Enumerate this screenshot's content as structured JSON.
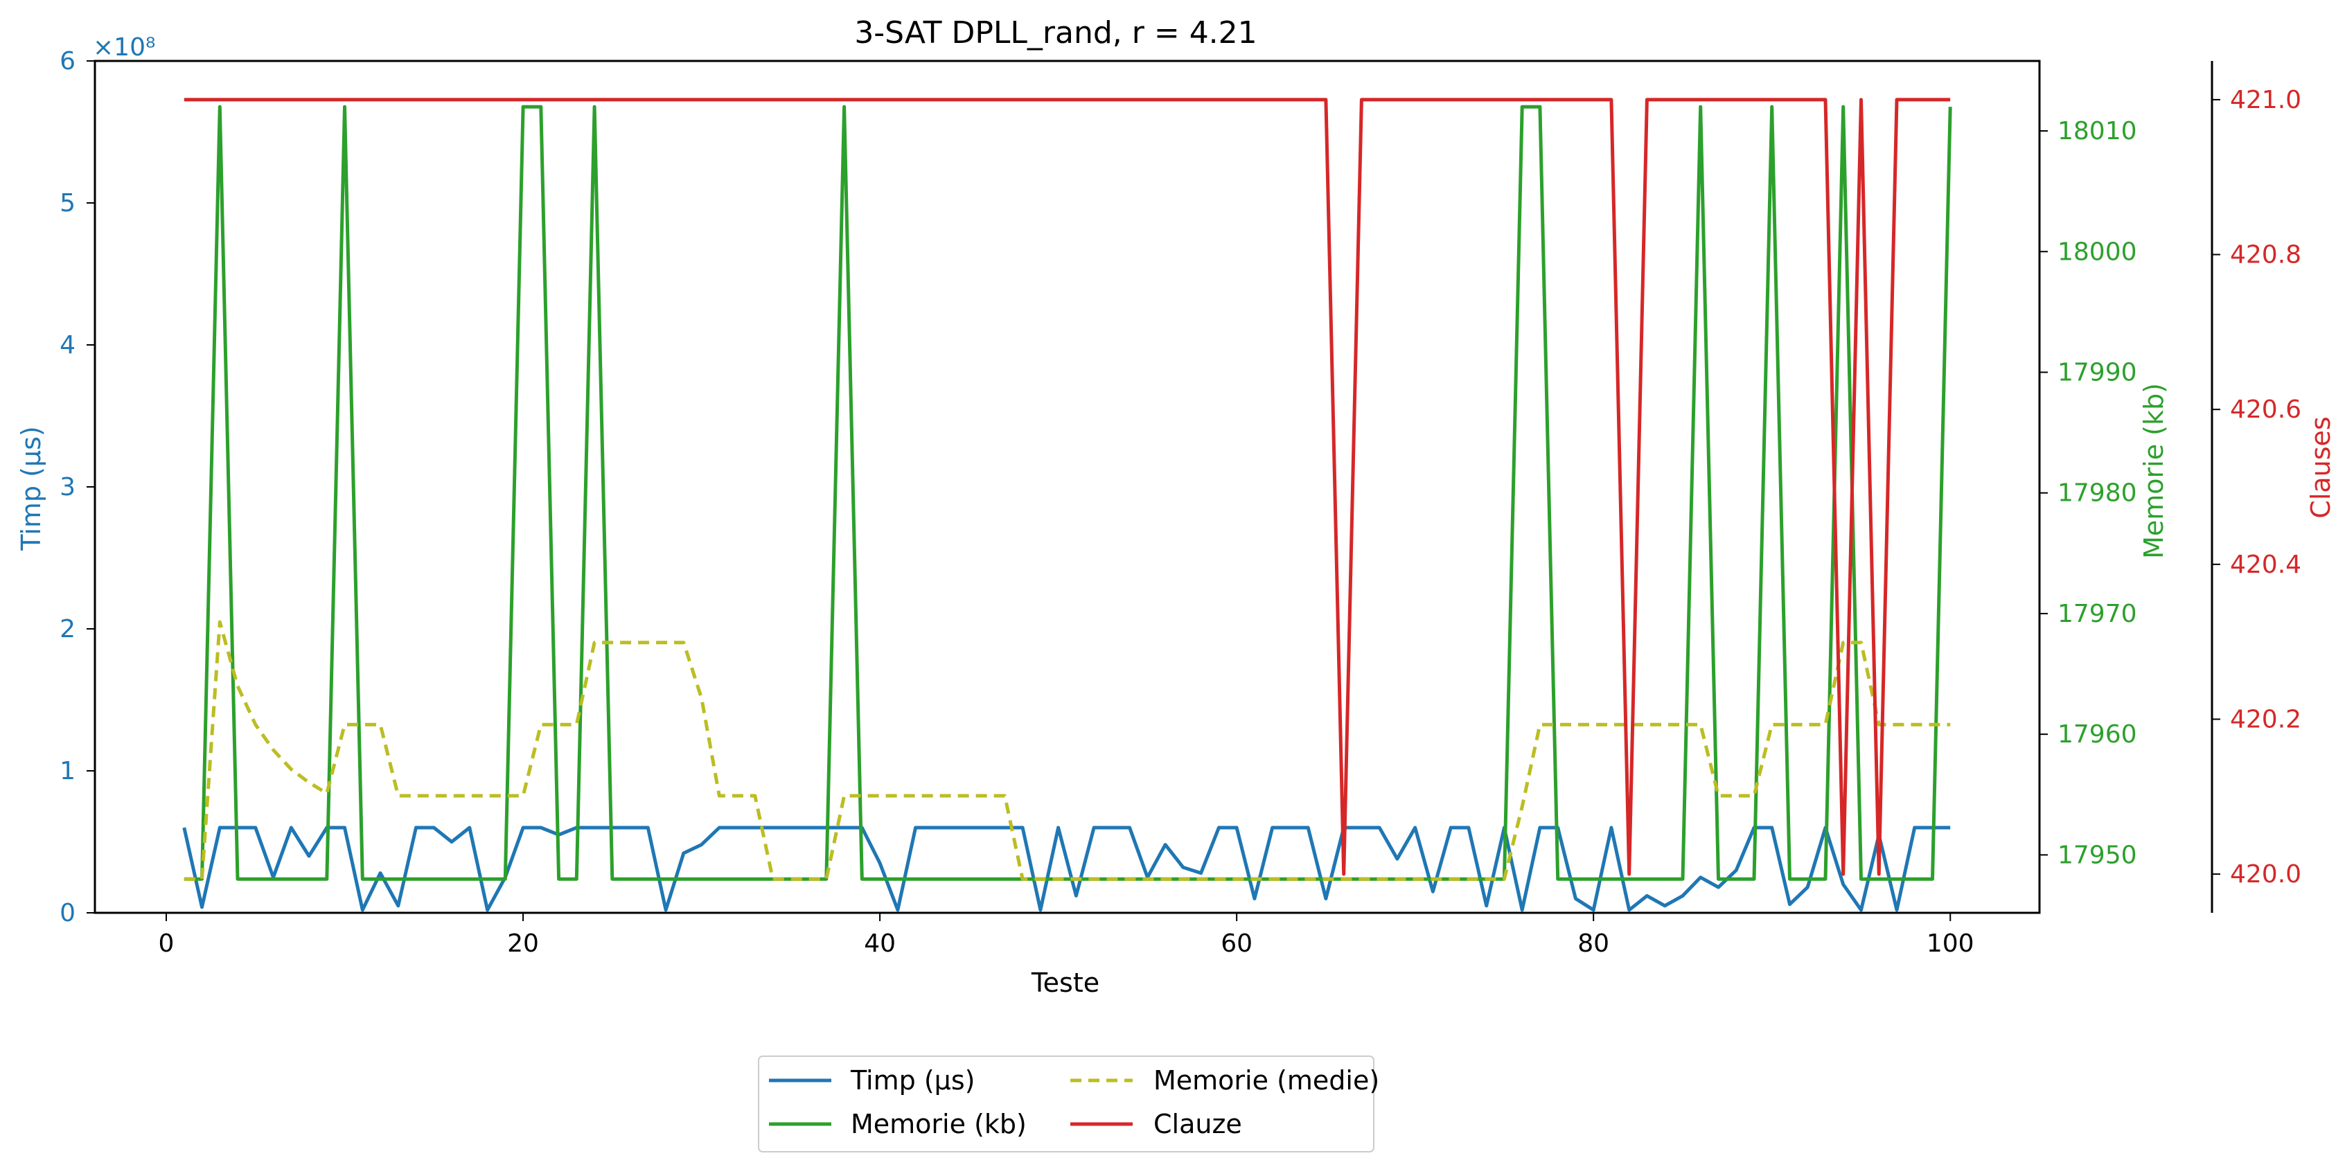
{
  "chart_data": {
    "type": "line",
    "title": "3-SAT DPLL_rand, r = 4.21",
    "xlabel": "Teste",
    "xlim": [
      -4,
      105
    ],
    "x_ticks": [
      0,
      20,
      40,
      60,
      80,
      100
    ],
    "y_left": {
      "label": "Timp (μs)",
      "range": [
        0,
        6
      ],
      "ticks": [
        0,
        1,
        2,
        3,
        4,
        5,
        6
      ],
      "multiplier_label": "×10⁸",
      "color": "#1f77b4"
    },
    "y_right_mem": {
      "label": "Memorie (kb)",
      "range": [
        17945.2,
        18015.8
      ],
      "ticks": [
        17950,
        17960,
        17970,
        17980,
        17990,
        18000,
        18010
      ],
      "color": "#2ca02c"
    },
    "y_right_clauses": {
      "label": "Clauses",
      "range": [
        419.95,
        421.05
      ],
      "ticks": [
        "420.0",
        "420.2",
        "420.4",
        "420.6",
        "420.8",
        "421.0"
      ],
      "color": "#d62728"
    },
    "grid": false,
    "legend": {
      "placement": "bottom-center",
      "entries": [
        {
          "label": "Timp (μs)",
          "color": "#1f77b4",
          "style": "solid"
        },
        {
          "label": "Memorie (medie)",
          "color": "#bcbd22",
          "style": "dashed"
        },
        {
          "label": "Memorie (kb)",
          "color": "#2ca02c",
          "style": "solid"
        },
        {
          "label": "Clauze",
          "color": "#d62728",
          "style": "solid"
        }
      ]
    },
    "x": [
      1,
      2,
      3,
      4,
      5,
      6,
      7,
      8,
      9,
      10,
      11,
      12,
      13,
      14,
      15,
      16,
      17,
      18,
      19,
      20,
      21,
      22,
      23,
      24,
      25,
      26,
      27,
      28,
      29,
      30,
      31,
      32,
      33,
      34,
      35,
      36,
      37,
      38,
      39,
      40,
      41,
      42,
      43,
      44,
      45,
      46,
      47,
      48,
      49,
      50,
      51,
      52,
      53,
      54,
      55,
      56,
      57,
      58,
      59,
      60,
      61,
      62,
      63,
      64,
      65,
      66,
      67,
      68,
      69,
      70,
      71,
      72,
      73,
      74,
      75,
      76,
      77,
      78,
      79,
      80,
      81,
      82,
      83,
      84,
      85,
      86,
      87,
      88,
      89,
      90,
      91,
      92,
      93,
      94,
      95,
      96,
      97,
      98,
      99,
      100
    ],
    "series": [
      {
        "name": "Timp (μs)",
        "axis": "left",
        "color": "#1f77b4",
        "values": [
          0.6,
          0.04,
          0.6,
          0.6,
          0.6,
          0.25,
          0.6,
          0.4,
          0.6,
          0.6,
          0.02,
          0.28,
          0.05,
          0.6,
          0.6,
          0.5,
          0.6,
          0.02,
          0.25,
          0.6,
          0.6,
          0.55,
          0.6,
          0.6,
          0.6,
          0.6,
          0.6,
          0.02,
          0.42,
          0.48,
          0.6,
          0.6,
          0.6,
          0.6,
          0.6,
          0.6,
          0.6,
          0.6,
          0.6,
          0.35,
          0.02,
          0.6,
          0.6,
          0.6,
          0.6,
          0.6,
          0.6,
          0.6,
          0.02,
          0.6,
          0.12,
          0.6,
          0.6,
          0.6,
          0.25,
          0.48,
          0.32,
          0.28,
          0.6,
          0.6,
          0.1,
          0.6,
          0.6,
          0.6,
          0.1,
          0.6,
          0.6,
          0.6,
          0.38,
          0.6,
          0.15,
          0.6,
          0.6,
          0.05,
          0.6,
          0.02,
          0.6,
          0.6,
          0.1,
          0.02,
          0.6,
          0.02,
          0.12,
          0.05,
          0.12,
          0.25,
          0.18,
          0.3,
          0.6,
          0.6,
          0.06,
          0.18,
          0.6,
          0.2,
          0.02,
          0.55,
          0.02,
          0.6,
          0.6,
          0.6
        ]
      },
      {
        "name": "Memorie (kb)",
        "axis": "mem",
        "color": "#2ca02c",
        "values": [
          17948,
          17948,
          18012,
          17948,
          17948,
          17948,
          17948,
          17948,
          17948,
          18012,
          17948,
          17948,
          17948,
          17948,
          17948,
          17948,
          17948,
          17948,
          17948,
          18012,
          18012,
          17948,
          17948,
          18012,
          17948,
          17948,
          17948,
          17948,
          17948,
          17948,
          17948,
          17948,
          17948,
          17948,
          17948,
          17948,
          17948,
          18012,
          17948,
          17948,
          17948,
          17948,
          17948,
          17948,
          17948,
          17948,
          17948,
          17948,
          17948,
          17948,
          17948,
          17948,
          17948,
          17948,
          17948,
          17948,
          17948,
          17948,
          17948,
          17948,
          17948,
          17948,
          17948,
          17948,
          17948,
          17948,
          17948,
          17948,
          17948,
          17948,
          17948,
          17948,
          17948,
          17948,
          17948,
          18012,
          18012,
          17948,
          17948,
          17948,
          17948,
          17948,
          17948,
          17948,
          17948,
          18012,
          17948,
          17948,
          17948,
          18012,
          17948,
          17948,
          17948,
          18012,
          17948,
          17948,
          17948,
          17948,
          17948,
          18012
        ]
      },
      {
        "name": "Memorie (medie)",
        "axis": "mem",
        "color": "#bcbd22",
        "values": [
          17948,
          17948,
          17969.3,
          17964,
          17960.8,
          17958.7,
          17957.1,
          17956,
          17955.1,
          17960.8,
          17960.8,
          17960.8,
          17954.9,
          17954.9,
          17954.9,
          17954.9,
          17954.9,
          17954.9,
          17954.9,
          17954.9,
          17960.8,
          17960.8,
          17960.8,
          17967.6,
          17967.6,
          17967.6,
          17967.6,
          17967.6,
          17967.6,
          17963,
          17954.9,
          17954.9,
          17954.9,
          17948,
          17948,
          17948,
          17948,
          17954.9,
          17954.9,
          17954.9,
          17954.9,
          17954.9,
          17954.9,
          17954.9,
          17954.9,
          17954.9,
          17954.9,
          17948,
          17948,
          17948,
          17948,
          17948,
          17948,
          17948,
          17948,
          17948,
          17948,
          17948,
          17948,
          17948,
          17948,
          17948,
          17948,
          17948,
          17948,
          17948,
          17948,
          17948,
          17948,
          17948,
          17948,
          17948,
          17948,
          17948,
          17948,
          17954,
          17960.8,
          17960.8,
          17960.8,
          17960.8,
          17960.8,
          17960.8,
          17960.8,
          17960.8,
          17960.8,
          17960.8,
          17954.9,
          17954.9,
          17954.9,
          17960.8,
          17960.8,
          17960.8,
          17960.8,
          17967.6,
          17967.6,
          17960.8,
          17960.8,
          17960.8,
          17960.8,
          17960.8
        ]
      },
      {
        "name": "Clauze",
        "axis": "clauses",
        "color": "#d62728",
        "values": [
          421,
          421,
          421,
          421,
          421,
          421,
          421,
          421,
          421,
          421,
          421,
          421,
          421,
          421,
          421,
          421,
          421,
          421,
          421,
          421,
          421,
          421,
          421,
          421,
          421,
          421,
          421,
          421,
          421,
          421,
          421,
          421,
          421,
          421,
          421,
          421,
          421,
          421,
          421,
          421,
          421,
          421,
          421,
          421,
          421,
          421,
          421,
          421,
          421,
          421,
          421,
          421,
          421,
          421,
          421,
          421,
          421,
          421,
          421,
          421,
          421,
          421,
          421,
          421,
          421,
          420,
          421,
          421,
          421,
          421,
          421,
          421,
          421,
          421,
          421,
          421,
          421,
          421,
          421,
          421,
          421,
          420,
          421,
          421,
          421,
          421,
          421,
          421,
          421,
          421,
          421,
          421,
          421,
          420,
          421,
          420,
          421,
          421,
          421,
          421
        ]
      }
    ]
  }
}
